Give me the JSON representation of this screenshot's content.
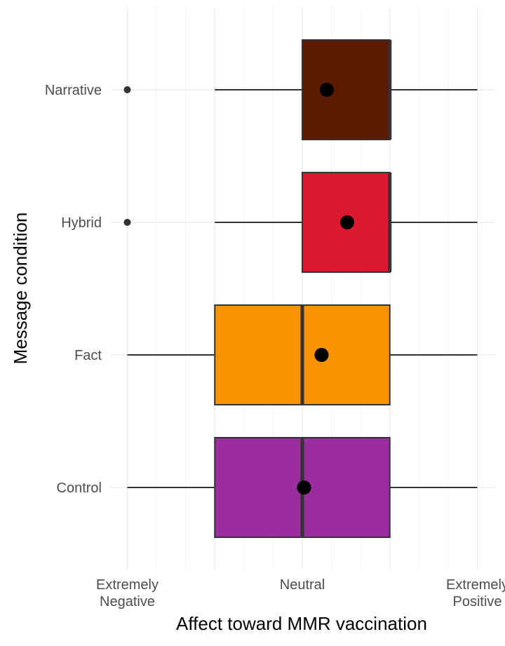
{
  "chart_data": {
    "type": "boxplot",
    "title": "",
    "xlabel": "Affect toward MMR vaccination",
    "ylabel": "Message condition",
    "xlim": [
      1,
      7
    ],
    "x_ticks": [
      {
        "value": 1,
        "lines": [
          "Extremely",
          "Negative"
        ]
      },
      {
        "value": 4,
        "lines": [
          "Neutral"
        ]
      },
      {
        "value": 7,
        "lines": [
          "Extremely",
          "Positive"
        ]
      }
    ],
    "categories": [
      "Narrative",
      "Hybrid",
      "Fact",
      "Control"
    ],
    "boxes": [
      {
        "category": "Narrative",
        "whisker_low": 2.5,
        "q1": 4,
        "median": 5.5,
        "q3": 5.5,
        "whisker_high": 7,
        "mean": 4.42,
        "outliers": [
          1
        ],
        "fill": "#5C1A00"
      },
      {
        "category": "Hybrid",
        "whisker_low": 2.5,
        "q1": 4,
        "median": 5.5,
        "q3": 5.5,
        "whisker_high": 7,
        "mean": 4.77,
        "outliers": [
          1
        ],
        "fill": "#DC1A2F"
      },
      {
        "category": "Fact",
        "whisker_low": 1,
        "q1": 2.5,
        "median": 4,
        "q3": 5.5,
        "whisker_high": 7,
        "mean": 4.33,
        "outliers": [],
        "fill": "#FB9200"
      },
      {
        "category": "Control",
        "whisker_low": 1,
        "q1": 2.5,
        "median": 4,
        "q3": 5.5,
        "whisker_high": 7,
        "mean": 4.03,
        "outliers": [],
        "fill": "#9B2DA0"
      }
    ],
    "grid": true,
    "legend": "none"
  }
}
